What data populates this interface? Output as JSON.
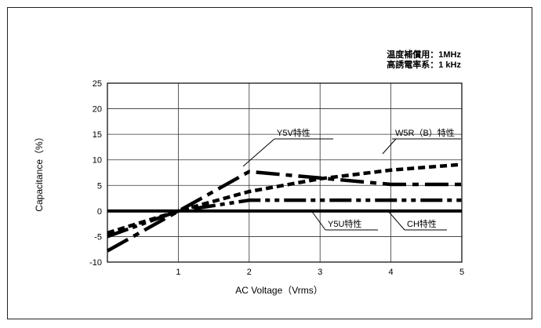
{
  "chart_data": {
    "type": "line",
    "title": "",
    "xlabel": "AC Voltage（Vrms）",
    "ylabel": "Capacitance（%）",
    "xlim": [
      0,
      5
    ],
    "ylim": [
      -10,
      25
    ],
    "x_ticks": [
      "1",
      "2",
      "3",
      "4",
      "5"
    ],
    "y_ticks": [
      "25",
      "20",
      "15",
      "10",
      "5",
      "0",
      "-5",
      "-10"
    ],
    "grid": true,
    "legend": "inline labels",
    "notes": [
      "温度補償用：1MHz",
      "高誘電率系：1 kHz"
    ],
    "series": [
      {
        "name": "Y5V特性",
        "style": "dash-dot",
        "x": [
          0,
          2,
          4,
          5
        ],
        "y": [
          -7.8,
          7.7,
          5.2,
          5.2
        ]
      },
      {
        "name": "W5R（B）特性",
        "style": "dashed",
        "x": [
          0,
          1,
          2,
          3,
          4,
          5
        ],
        "y": [
          -4.3,
          0,
          3.8,
          6.3,
          8.0,
          9.1
        ]
      },
      {
        "name": "Y5U特性",
        "style": "dash-dot-dot",
        "x": [
          0,
          1,
          2,
          5
        ],
        "y": [
          -5.0,
          0,
          2.1,
          2.1
        ]
      },
      {
        "name": "CH特性",
        "style": "solid",
        "x": [
          0,
          5
        ],
        "y": [
          0,
          0
        ]
      }
    ]
  }
}
